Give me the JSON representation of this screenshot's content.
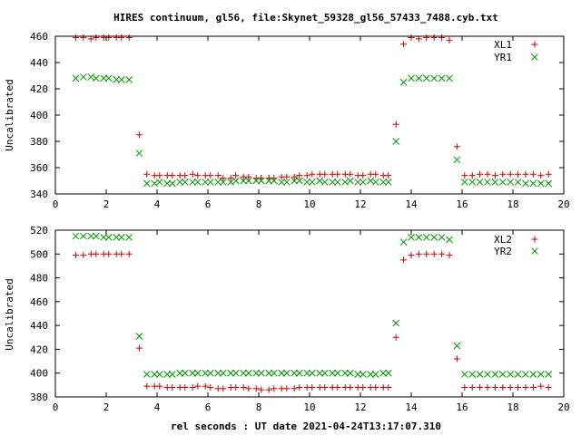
{
  "title": "HIRES continuum, gl56, file:Skynet_59328_gl56_57433_7488.cyb.txt",
  "x_axis_label": "rel seconds : UT date 2021-04-24T13:17:07.310",
  "colors": {
    "red": "#cc0000",
    "green": "#009900",
    "axis": "#000000"
  },
  "chart_data": [
    {
      "type": "scatter",
      "ylabel": "Uncalibrated",
      "xlim": [
        0,
        20
      ],
      "ylim": [
        340,
        460
      ],
      "xticks": [
        0,
        2,
        4,
        6,
        8,
        10,
        12,
        14,
        16,
        18,
        20
      ],
      "yticks": [
        340,
        360,
        380,
        400,
        420,
        440,
        460
      ],
      "legend_position": "top-right",
      "series": [
        {
          "name": "XL1",
          "marker": "plus",
          "color": "#cc0000",
          "x": [
            0.8,
            1.1,
            1.4,
            1.6,
            1.9,
            2.1,
            2.4,
            2.6,
            2.9,
            3.3,
            3.6,
            3.9,
            4.1,
            4.4,
            4.6,
            4.9,
            5.1,
            5.4,
            5.6,
            5.9,
            6.1,
            6.4,
            6.6,
            6.9,
            7.1,
            7.4,
            7.6,
            7.9,
            8.1,
            8.4,
            8.6,
            8.9,
            9.1,
            9.4,
            9.6,
            9.9,
            10.1,
            10.4,
            10.6,
            10.9,
            11.1,
            11.4,
            11.6,
            11.9,
            12.1,
            12.4,
            12.6,
            12.9,
            13.1,
            13.4,
            13.7,
            14.0,
            14.3,
            14.6,
            14.9,
            15.2,
            15.5,
            15.8,
            16.1,
            16.4,
            16.7,
            17.0,
            17.3,
            17.6,
            17.9,
            18.2,
            18.5,
            18.8,
            19.1,
            19.4
          ],
          "y": [
            459,
            459,
            458,
            459,
            459,
            459,
            459,
            459,
            459,
            385,
            355,
            354,
            354,
            354,
            354,
            354,
            354,
            355,
            354,
            354,
            354,
            354,
            352,
            352,
            354,
            353,
            353,
            352,
            352,
            352,
            352,
            353,
            353,
            353,
            354,
            354,
            355,
            355,
            355,
            355,
            355,
            355,
            355,
            354,
            354,
            355,
            355,
            354,
            354,
            393,
            454,
            459,
            458,
            459,
            459,
            459,
            457,
            376,
            354,
            354,
            355,
            355,
            354,
            355,
            355,
            355,
            355,
            355,
            354,
            355
          ]
        },
        {
          "name": "YR1",
          "marker": "cross",
          "color": "#009900",
          "x": [
            0.8,
            1.1,
            1.4,
            1.6,
            1.9,
            2.1,
            2.4,
            2.6,
            2.9,
            3.3,
            3.6,
            3.9,
            4.1,
            4.4,
            4.6,
            4.9,
            5.1,
            5.4,
            5.6,
            5.9,
            6.1,
            6.4,
            6.6,
            6.9,
            7.1,
            7.4,
            7.6,
            7.9,
            8.1,
            8.4,
            8.6,
            8.9,
            9.1,
            9.4,
            9.6,
            9.9,
            10.1,
            10.4,
            10.6,
            10.9,
            11.1,
            11.4,
            11.6,
            11.9,
            12.1,
            12.4,
            12.6,
            12.9,
            13.1,
            13.4,
            13.7,
            14.0,
            14.3,
            14.6,
            14.9,
            15.2,
            15.5,
            15.8,
            16.1,
            16.4,
            16.7,
            17.0,
            17.3,
            17.6,
            17.9,
            18.2,
            18.5,
            18.8,
            19.1,
            19.4
          ],
          "y": [
            428,
            429,
            429,
            428,
            428,
            428,
            427,
            427,
            427,
            371,
            348,
            348,
            349,
            348,
            348,
            349,
            349,
            349,
            349,
            349,
            349,
            349,
            349,
            349,
            350,
            350,
            350,
            350,
            350,
            350,
            350,
            349,
            349,
            350,
            350,
            349,
            349,
            350,
            349,
            349,
            349,
            349,
            350,
            349,
            349,
            350,
            349,
            349,
            349,
            380,
            425,
            428,
            428,
            428,
            428,
            428,
            428,
            366,
            349,
            349,
            349,
            349,
            349,
            349,
            349,
            349,
            348,
            348,
            348,
            348
          ]
        }
      ]
    },
    {
      "type": "scatter",
      "ylabel": "Uncalibrated",
      "xlabel": "rel seconds : UT date 2021-04-24T13:17:07.310",
      "xlim": [
        0,
        20
      ],
      "ylim": [
        380,
        520
      ],
      "xticks": [
        0,
        2,
        4,
        6,
        8,
        10,
        12,
        14,
        16,
        18,
        20
      ],
      "yticks": [
        380,
        400,
        420,
        440,
        460,
        480,
        500,
        520
      ],
      "legend_position": "top-right",
      "series": [
        {
          "name": "XL2",
          "marker": "plus",
          "color": "#cc0000",
          "x": [
            0.8,
            1.1,
            1.4,
            1.6,
            1.9,
            2.1,
            2.4,
            2.6,
            2.9,
            3.3,
            3.6,
            3.9,
            4.1,
            4.4,
            4.6,
            4.9,
            5.1,
            5.4,
            5.6,
            5.9,
            6.1,
            6.4,
            6.6,
            6.9,
            7.1,
            7.4,
            7.6,
            7.9,
            8.1,
            8.4,
            8.6,
            8.9,
            9.1,
            9.4,
            9.6,
            9.9,
            10.1,
            10.4,
            10.6,
            10.9,
            11.1,
            11.4,
            11.6,
            11.9,
            12.1,
            12.4,
            12.6,
            12.9,
            13.1,
            13.4,
            13.7,
            14.0,
            14.3,
            14.6,
            14.9,
            15.2,
            15.5,
            15.8,
            16.1,
            16.4,
            16.7,
            17.0,
            17.3,
            17.6,
            17.9,
            18.2,
            18.5,
            18.8,
            19.1,
            19.4
          ],
          "y": [
            499,
            499,
            500,
            500,
            500,
            500,
            500,
            500,
            500,
            421,
            389,
            389,
            389,
            388,
            388,
            388,
            388,
            388,
            389,
            389,
            388,
            387,
            387,
            388,
            388,
            388,
            387,
            387,
            386,
            386,
            387,
            387,
            387,
            387,
            388,
            388,
            388,
            388,
            388,
            388,
            388,
            388,
            388,
            388,
            388,
            388,
            388,
            388,
            388,
            430,
            495,
            499,
            500,
            500,
            500,
            500,
            499,
            412,
            388,
            388,
            388,
            388,
            388,
            388,
            388,
            388,
            388,
            388,
            389,
            388
          ]
        },
        {
          "name": "YR2",
          "marker": "cross",
          "color": "#009900",
          "x": [
            0.8,
            1.1,
            1.4,
            1.6,
            1.9,
            2.1,
            2.4,
            2.6,
            2.9,
            3.3,
            3.6,
            3.9,
            4.1,
            4.4,
            4.6,
            4.9,
            5.1,
            5.4,
            5.6,
            5.9,
            6.1,
            6.4,
            6.6,
            6.9,
            7.1,
            7.4,
            7.6,
            7.9,
            8.1,
            8.4,
            8.6,
            8.9,
            9.1,
            9.4,
            9.6,
            9.9,
            10.1,
            10.4,
            10.6,
            10.9,
            11.1,
            11.4,
            11.6,
            11.9,
            12.1,
            12.4,
            12.6,
            12.9,
            13.1,
            13.4,
            13.7,
            14.0,
            14.3,
            14.6,
            14.9,
            15.2,
            15.5,
            15.8,
            16.1,
            16.4,
            16.7,
            17.0,
            17.3,
            17.6,
            17.9,
            18.2,
            18.5,
            18.8,
            19.1,
            19.4
          ],
          "y": [
            515,
            515,
            515,
            515,
            514,
            514,
            514,
            514,
            514,
            431,
            399,
            399,
            399,
            399,
            399,
            400,
            400,
            400,
            400,
            400,
            400,
            400,
            400,
            400,
            400,
            400,
            400,
            400,
            400,
            400,
            400,
            400,
            400,
            400,
            400,
            400,
            400,
            400,
            400,
            400,
            400,
            400,
            400,
            399,
            399,
            399,
            399,
            400,
            400,
            442,
            510,
            514,
            514,
            514,
            514,
            514,
            512,
            423,
            399,
            399,
            399,
            399,
            399,
            399,
            399,
            399,
            399,
            399,
            399,
            399
          ]
        }
      ]
    }
  ]
}
